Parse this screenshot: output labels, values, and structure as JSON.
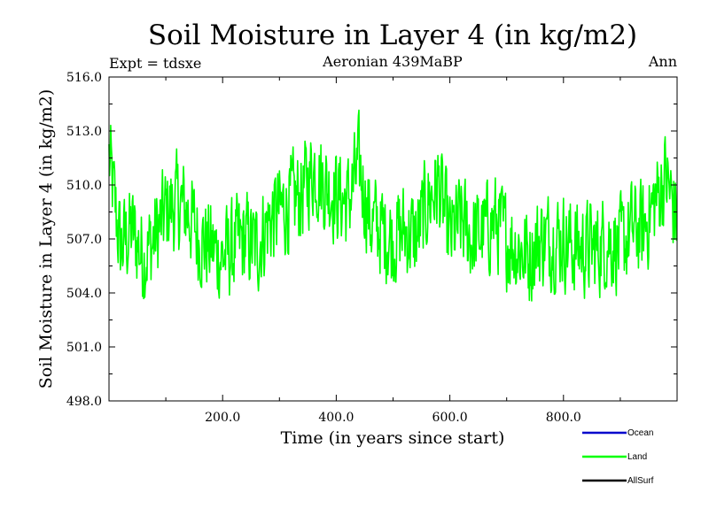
{
  "chart_data": {
    "type": "line",
    "title": "Soil Moisture in Layer 4 (in kg/m2)",
    "subtitle": "Aeronian 439MaBP",
    "left_label": "Expt = tdsxe",
    "right_label": "Ann",
    "xlabel": "Time (in years since start)",
    "ylabel": "Soil Moisture in Layer 4 (in kg/m2)",
    "xlim": [
      0,
      1000
    ],
    "ylim": [
      498.0,
      516.0
    ],
    "x_ticks": [
      200,
      400,
      600,
      800
    ],
    "x_tick_labels": [
      "200.0",
      "400.0",
      "600.0",
      "800.0"
    ],
    "y_ticks": [
      498,
      501,
      504,
      507,
      510,
      513,
      516
    ],
    "y_tick_labels": [
      "498.0",
      "501.0",
      "504.0",
      "507.0",
      "510.0",
      "513.0",
      "516.0"
    ],
    "legend_position": "bottom-right",
    "series": [
      {
        "name": "Ocean",
        "color": "#0000cc",
        "values": []
      },
      {
        "name": "Land",
        "color": "#00ff00",
        "x": [
          0,
          20,
          40,
          60,
          80,
          100,
          120,
          140,
          160,
          180,
          200,
          220,
          240,
          260,
          280,
          300,
          320,
          340,
          360,
          380,
          400,
          420,
          440,
          460,
          480,
          500,
          520,
          540,
          560,
          580,
          600,
          620,
          640,
          660,
          680,
          700,
          720,
          740,
          760,
          780,
          800,
          820,
          840,
          860,
          880,
          900,
          920,
          940,
          960,
          980,
          1000
        ],
        "values": [
          511.5,
          506.5,
          507.5,
          506.0,
          507.0,
          508.5,
          509.0,
          508.5,
          507.0,
          506.5,
          506.0,
          506.5,
          507.0,
          506.5,
          508.0,
          508.5,
          509.0,
          509.5,
          511.0,
          510.0,
          509.5,
          509.0,
          511.0,
          508.0,
          507.5,
          507.0,
          507.5,
          507.0,
          509.0,
          510.0,
          507.0,
          508.0,
          507.0,
          507.5,
          508.0,
          507.0,
          506.5,
          506.0,
          507.0,
          507.0,
          507.0,
          506.5,
          506.5,
          506.5,
          507.0,
          506.5,
          507.5,
          507.5,
          509.0,
          510.5,
          508.0
        ]
      },
      {
        "name": "AllSurf",
        "color": "#000000",
        "values": []
      }
    ]
  }
}
